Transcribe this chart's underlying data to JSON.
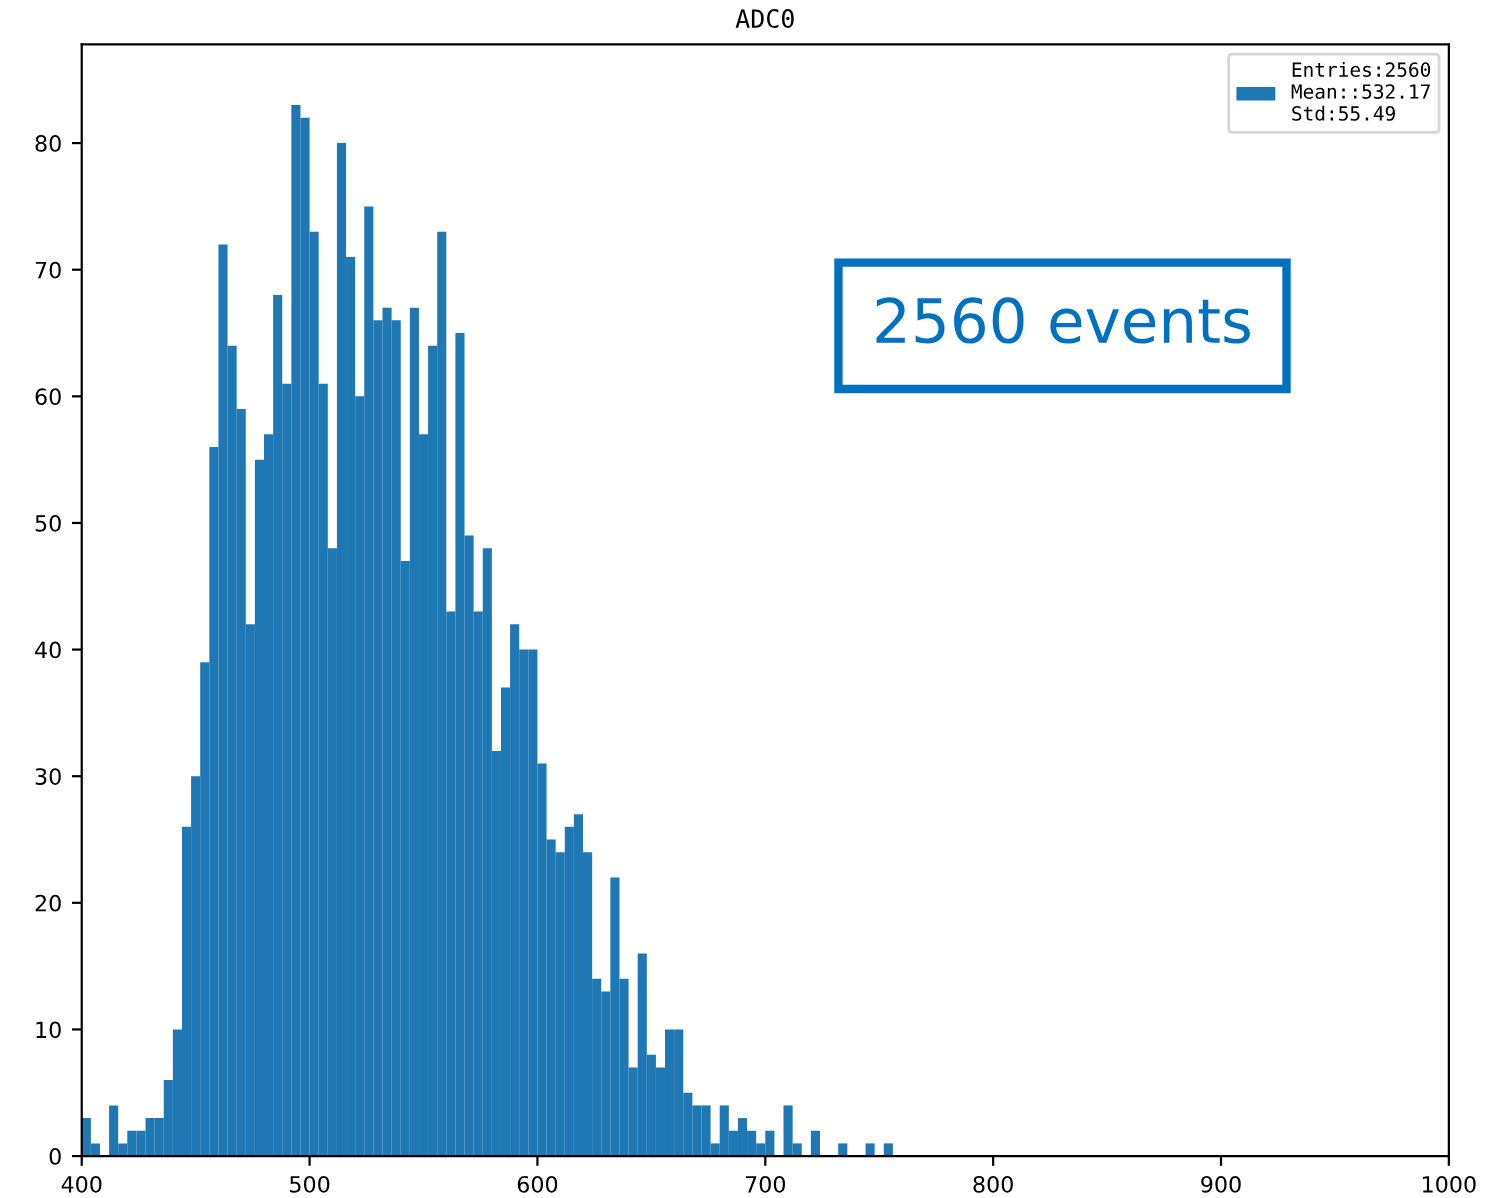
{
  "chart_data": {
    "type": "histogram",
    "title": "ADC0",
    "bins": [
      400,
      404,
      408,
      412,
      416,
      420,
      424,
      428,
      432,
      436,
      440,
      444,
      448,
      452,
      456,
      460,
      464,
      468,
      472,
      476,
      480,
      484,
      488,
      492,
      496,
      500,
      504,
      508,
      512,
      516,
      520,
      524,
      528,
      532,
      536,
      540,
      544,
      548,
      552,
      556,
      560,
      564,
      568,
      572,
      576,
      580,
      584,
      588,
      592,
      596,
      600,
      604,
      608,
      612,
      616,
      620,
      624,
      628,
      632,
      636,
      640,
      644,
      648,
      652,
      656,
      660,
      664,
      668,
      672,
      676,
      680,
      684,
      688,
      692,
      696,
      700,
      704,
      708,
      712,
      716,
      720,
      724,
      728,
      732,
      736,
      740,
      744,
      748,
      752,
      756
    ],
    "series": [
      {
        "name": "Entries:2560\nMean::532.17\nStd:55.49",
        "color": "#1f77b4",
        "values": [
          3,
          1,
          0,
          4,
          1,
          2,
          2,
          3,
          3,
          6,
          10,
          26,
          30,
          39,
          56,
          72,
          64,
          59,
          42,
          55,
          57,
          68,
          61,
          83,
          82,
          73,
          61,
          48,
          80,
          71,
          60,
          75,
          66,
          67,
          66,
          47,
          67,
          57,
          64,
          73,
          43,
          65,
          49,
          43,
          48,
          32,
          37,
          42,
          40,
          40,
          31,
          25,
          24,
          26,
          27,
          24,
          14,
          13,
          22,
          14,
          7,
          16,
          8,
          7,
          10,
          10,
          5,
          4,
          4,
          1,
          4,
          2,
          3,
          2,
          1,
          2,
          0,
          4,
          1,
          0,
          2,
          0,
          0,
          1,
          0,
          0,
          1,
          0,
          1
        ]
      }
    ],
    "xlim": [
      400,
      1000
    ],
    "xticks": [
      400,
      500,
      600,
      700,
      800,
      900,
      1000
    ],
    "ylim": [
      0,
      87.8
    ],
    "yticks": [
      0,
      10,
      20,
      30,
      40,
      50,
      60,
      70,
      80
    ],
    "legend": "top right",
    "grid": false,
    "annotations": [
      "2560 events"
    ]
  }
}
